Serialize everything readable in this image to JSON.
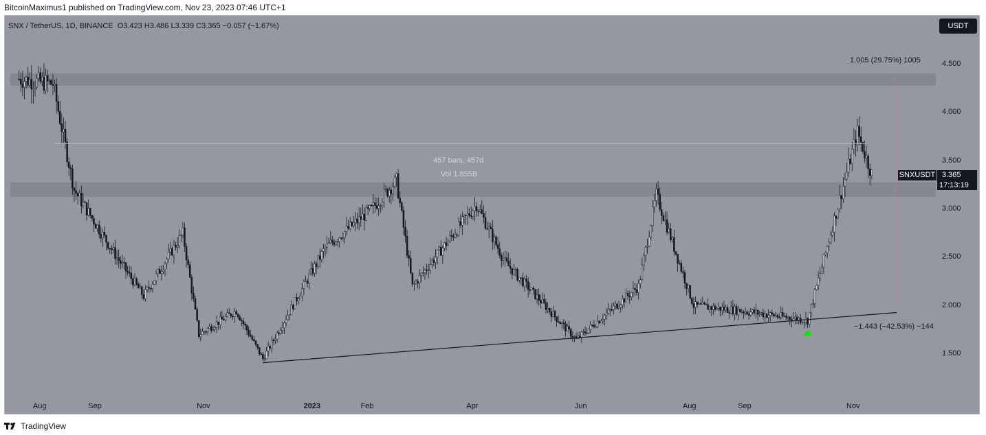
{
  "header": {
    "publish_line": "BitcoinMaximus1 published on TradingView.com, Nov 23, 2023 07:46 UTC+1"
  },
  "symbol_info": {
    "symbol": "SNX / TetherUS, 1D, BINANCE",
    "open_key": "O",
    "open": "3.423",
    "high_key": "H",
    "high": "3.486",
    "low_key": "L",
    "low": "3.339",
    "close_key": "C",
    "close": "3.365",
    "change": "−0.057 (−1.67%)"
  },
  "currency_button": "USDT",
  "price_axis": {
    "ticks": [
      "4.500",
      "4.000",
      "3.500",
      "3.000",
      "2.500",
      "2.000",
      "1.500"
    ]
  },
  "time_axis": {
    "ticks": [
      {
        "label": "Aug",
        "bold": false
      },
      {
        "label": "Sep",
        "bold": false
      },
      {
        "label": "Nov",
        "bold": false
      },
      {
        "label": "2023",
        "bold": true
      },
      {
        "label": "Feb",
        "bold": false
      },
      {
        "label": "Apr",
        "bold": false
      },
      {
        "label": "Jun",
        "bold": false
      },
      {
        "label": "Aug",
        "bold": false
      },
      {
        "label": "Sep",
        "bold": false
      },
      {
        "label": "Nov",
        "bold": false
      }
    ]
  },
  "price_tag": {
    "symbol": "SNXUSDT",
    "price": "3.365",
    "countdown": "17:13:19"
  },
  "annotations": {
    "bars_range": "457 bars, 457d",
    "volume": "Vol 1.855B",
    "top_measure": "1.005 (29.75%) 1005",
    "bottom_measure": "−1.443 (−42.53%) −144"
  },
  "chart_data": {
    "type": "candlestick",
    "symbol": "SNX / TetherUS",
    "interval": "1D",
    "exchange": "BINANCE",
    "quote_currency": "USDT",
    "ylim": [
      1.05,
      4.85
    ],
    "last_price": 3.365,
    "zones": [
      {
        "low": 4.28,
        "high": 4.41
      },
      {
        "low": 3.13,
        "high": 3.28
      }
    ],
    "reference_lines": [
      3.68
    ],
    "trendline": {
      "from": {
        "date": "2022-12-16",
        "price": 1.41
      },
      "to": {
        "date": "2023-12-07",
        "price": 1.93
      }
    },
    "marker": {
      "type": "arrow-up",
      "color": "#00e600",
      "date": "2023-10-18",
      "price": 1.72
    },
    "key_points": [
      {
        "date": "2022-08-01",
        "price": 4.35
      },
      {
        "date": "2022-08-20",
        "price": 4.3
      },
      {
        "date": "2022-09-01",
        "price": 3.2
      },
      {
        "date": "2022-09-25",
        "price": 2.5
      },
      {
        "date": "2022-10-10",
        "price": 2.1
      },
      {
        "date": "2022-11-01",
        "price": 2.75
      },
      {
        "date": "2022-11-10",
        "price": 1.7
      },
      {
        "date": "2022-12-01",
        "price": 1.95
      },
      {
        "date": "2022-12-16",
        "price": 1.45
      },
      {
        "date": "2023-01-20",
        "price": 2.6
      },
      {
        "date": "2023-02-15",
        "price": 3.0
      },
      {
        "date": "2023-03-01",
        "price": 3.3
      },
      {
        "date": "2023-03-10",
        "price": 2.2
      },
      {
        "date": "2023-04-15",
        "price": 3.05
      },
      {
        "date": "2023-05-01",
        "price": 2.45
      },
      {
        "date": "2023-06-10",
        "price": 1.65
      },
      {
        "date": "2023-07-15",
        "price": 2.2
      },
      {
        "date": "2023-07-25",
        "price": 3.15
      },
      {
        "date": "2023-08-15",
        "price": 2.0
      },
      {
        "date": "2023-09-10",
        "price": 1.95
      },
      {
        "date": "2023-10-18",
        "price": 1.85
      },
      {
        "date": "2023-11-15",
        "price": 3.8
      },
      {
        "date": "2023-11-23",
        "price": 3.365
      }
    ]
  },
  "footer": {
    "brand": "TradingView"
  }
}
